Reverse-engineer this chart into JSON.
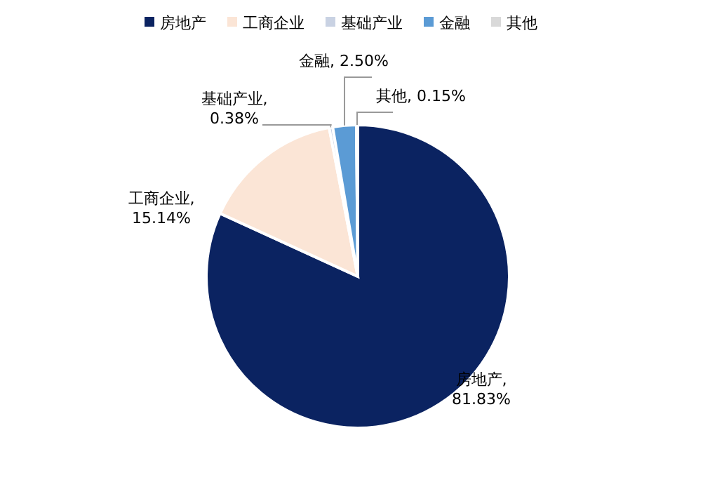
{
  "chart_data": {
    "type": "pie",
    "categories": [
      "房地产",
      "工商企业",
      "基础产业",
      "金融",
      "其他"
    ],
    "values": [
      81.83,
      15.14,
      0.38,
      2.5,
      0.15
    ],
    "value_labels": [
      "房地产,\n81.83%",
      "工商企业,\n15.14%",
      "基础产业,\n0.38%",
      "金融, 2.50%",
      "其他, 0.15%"
    ],
    "colors": [
      "#0b2361",
      "#fbe5d6",
      "#c9d2e3",
      "#5b9bd5",
      "#d9d9d9"
    ],
    "legend": "top"
  }
}
